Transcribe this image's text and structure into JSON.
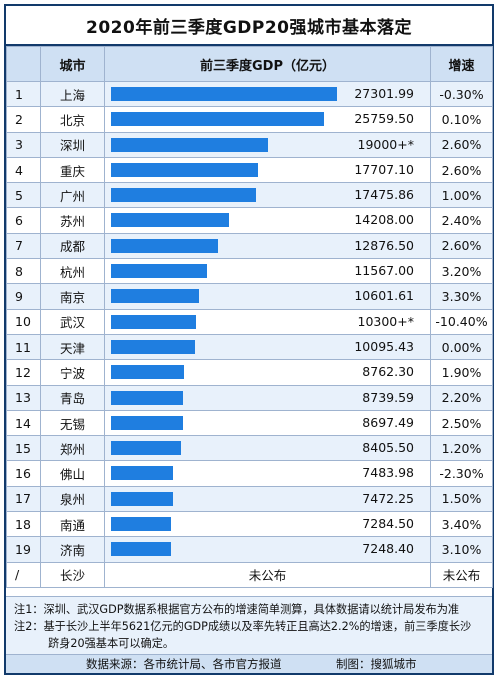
{
  "title": "2020年前三季度GDP20强城市基本落定",
  "headers": {
    "rank": "",
    "city": "城市",
    "gdp": "前三季度GDP（亿元）",
    "change": "增速"
  },
  "chart_data": {
    "type": "bar",
    "categories": [
      "上海",
      "北京",
      "深圳",
      "重庆",
      "广州",
      "苏州",
      "成都",
      "杭州",
      "南京",
      "武汉",
      "天津",
      "宁波",
      "青岛",
      "无锡",
      "郑州",
      "佛山",
      "泉州",
      "南通",
      "济南"
    ],
    "values": [
      27301.99,
      25759.5,
      19000,
      17707.1,
      17475.86,
      14208.0,
      12876.5,
      11567.0,
      10601.61,
      10300,
      10095.43,
      8762.3,
      8739.59,
      8697.49,
      8405.5,
      7483.98,
      7472.25,
      7284.5,
      7248.4
    ],
    "xlim": [
      0,
      30000
    ],
    "rows": [
      {
        "rank": "1",
        "city": "上海",
        "gdp_label": "27301.99",
        "change": "-0.30%"
      },
      {
        "rank": "2",
        "city": "北京",
        "gdp_label": "25759.50",
        "change": "0.10%"
      },
      {
        "rank": "3",
        "city": "深圳",
        "gdp_label": "19000+*",
        "change": "2.60%"
      },
      {
        "rank": "4",
        "city": "重庆",
        "gdp_label": "17707.10",
        "change": "2.60%"
      },
      {
        "rank": "5",
        "city": "广州",
        "gdp_label": "17475.86",
        "change": "1.00%"
      },
      {
        "rank": "6",
        "city": "苏州",
        "gdp_label": "14208.00",
        "change": "2.40%"
      },
      {
        "rank": "7",
        "city": "成都",
        "gdp_label": "12876.50",
        "change": "2.60%"
      },
      {
        "rank": "8",
        "city": "杭州",
        "gdp_label": "11567.00",
        "change": "3.20%"
      },
      {
        "rank": "9",
        "city": "南京",
        "gdp_label": "10601.61",
        "change": "3.30%"
      },
      {
        "rank": "10",
        "city": "武汉",
        "gdp_label": "10300+*",
        "change": "-10.40%"
      },
      {
        "rank": "11",
        "city": "天津",
        "gdp_label": "10095.43",
        "change": "0.00%"
      },
      {
        "rank": "12",
        "city": "宁波",
        "gdp_label": "8762.30",
        "change": "1.90%"
      },
      {
        "rank": "13",
        "city": "青岛",
        "gdp_label": "8739.59",
        "change": "2.20%"
      },
      {
        "rank": "14",
        "city": "无锡",
        "gdp_label": "8697.49",
        "change": "2.50%"
      },
      {
        "rank": "15",
        "city": "郑州",
        "gdp_label": "8405.50",
        "change": "1.20%"
      },
      {
        "rank": "16",
        "city": "佛山",
        "gdp_label": "7483.98",
        "change": "-2.30%"
      },
      {
        "rank": "17",
        "city": "泉州",
        "gdp_label": "7472.25",
        "change": "1.50%"
      },
      {
        "rank": "18",
        "city": "南通",
        "gdp_label": "7284.50",
        "change": "3.40%"
      },
      {
        "rank": "19",
        "city": "济南",
        "gdp_label": "7248.40",
        "change": "3.10%"
      }
    ],
    "extra_row": {
      "rank": "/",
      "city": "长沙",
      "gdp_label": "未公布",
      "change": "未公布"
    }
  },
  "notes": {
    "note1": "注1：深圳、武汉GDP数据系根据官方公布的增速简单测算，具体数据请以统计局发布为准",
    "note2": "注2：基于长沙上半年5621亿元的GDP成绩以及率先转正且高达2.2%的增速，前三季度长沙",
    "note2b": "跻身20强基本可以确定。"
  },
  "footer": {
    "source": "数据来源：各市统计局、各市官方报道",
    "credit": "制图：搜狐城市"
  },
  "colors": {
    "bar": "#1f7ee0",
    "header_bg": "#cfe0f3",
    "stripe": "#e8f1fb",
    "border": "#123a6b"
  }
}
